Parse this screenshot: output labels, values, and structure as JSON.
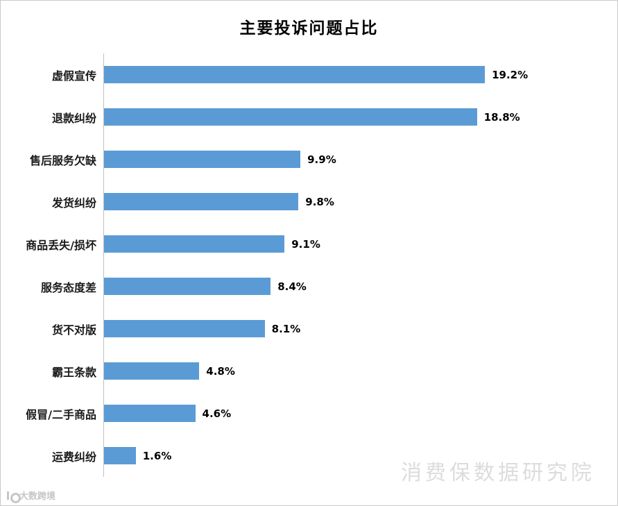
{
  "title": "主要投诉问题占比",
  "watermark": "消费保数据研究院",
  "logo": {
    "text": "大数跨境"
  },
  "colors": {
    "bar": "#5B9BD5",
    "watermark": "#dcdcdc",
    "axis_line": "#bfbfbf"
  },
  "chart_data": {
    "type": "bar",
    "orientation": "horizontal",
    "title": "主要投诉问题占比",
    "categories": [
      "虚假宣传",
      "退款纠纷",
      "售后服务欠缺",
      "发货纠纷",
      "商品丢失/损坏",
      "服务态度差",
      "货不对版",
      "霸王条款",
      "假冒/二手商品",
      "运费纠纷"
    ],
    "values": [
      19.2,
      18.8,
      9.9,
      9.8,
      9.1,
      8.4,
      8.1,
      4.8,
      4.6,
      1.6
    ],
    "value_labels": [
      "19.2%",
      "18.8%",
      "9.9%",
      "9.8%",
      "9.1%",
      "8.4%",
      "8.1%",
      "4.8%",
      "4.6%",
      "1.6%"
    ],
    "xlabel": "",
    "ylabel": "",
    "xlim": [
      0,
      21
    ],
    "grid": false,
    "legend": false,
    "data_labels": true
  }
}
